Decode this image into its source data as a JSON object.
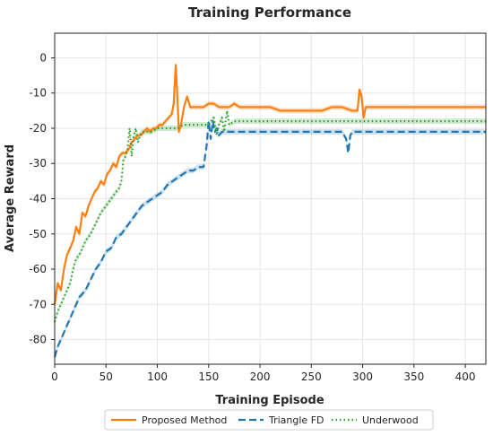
{
  "chart_data": {
    "type": "line",
    "title": "Training Performance",
    "xlabel": "Training Episode",
    "ylabel": "Average Reward",
    "xlim": [
      0,
      420
    ],
    "ylim": [
      -87,
      7
    ],
    "xticks": [
      0,
      50,
      100,
      150,
      200,
      250,
      300,
      350,
      400
    ],
    "yticks": [
      0,
      -10,
      -20,
      -30,
      -40,
      -50,
      -60,
      -70,
      -80
    ],
    "grid": true,
    "legend_position": "bottom-center",
    "series": [
      {
        "name": "Proposed Method",
        "color": "#ff7f0e",
        "style": "solid",
        "x": [
          0,
          3,
          6,
          9,
          12,
          15,
          18,
          21,
          24,
          27,
          30,
          33,
          36,
          39,
          42,
          45,
          48,
          51,
          54,
          57,
          60,
          63,
          66,
          69,
          72,
          75,
          78,
          81,
          84,
          87,
          90,
          93,
          96,
          99,
          102,
          105,
          108,
          111,
          114,
          116,
          118,
          119,
          121,
          123,
          126,
          129,
          132,
          135,
          140,
          145,
          150,
          155,
          160,
          165,
          170,
          175,
          180,
          185,
          190,
          195,
          200,
          210,
          220,
          230,
          240,
          250,
          260,
          270,
          280,
          290,
          295,
          297,
          299,
          301,
          303,
          306,
          310,
          320,
          330,
          340,
          350,
          360,
          370,
          380,
          390,
          400,
          410,
          420
        ],
        "y": [
          -70,
          -64,
          -66,
          -60,
          -56,
          -54,
          -52,
          -48,
          -50,
          -44,
          -45,
          -42,
          -40,
          -38,
          -37,
          -35,
          -36,
          -33,
          -32,
          -30,
          -31,
          -28,
          -27,
          -27,
          -26,
          -24,
          -23,
          -22,
          -22,
          -21,
          -20,
          -21,
          -20,
          -20,
          -19,
          -19,
          -18,
          -17,
          -16,
          -13,
          -2,
          -8,
          -21,
          -19,
          -14,
          -11,
          -14,
          -14,
          -14,
          -14,
          -13,
          -13,
          -14,
          -14,
          -14,
          -13,
          -14,
          -14,
          -14,
          -14,
          -14,
          -14,
          -15,
          -15,
          -15,
          -15,
          -15,
          -14,
          -14,
          -15,
          -15,
          -9,
          -11,
          -17,
          -14,
          -14,
          -14,
          -14,
          -14,
          -14,
          -14,
          -14,
          -14,
          -14,
          -14,
          -14,
          -14,
          -14
        ]
      },
      {
        "name": "Triangle FD",
        "color": "#1f77b4",
        "style": "dashed",
        "x": [
          0,
          3,
          6,
          9,
          12,
          15,
          18,
          21,
          24,
          27,
          30,
          35,
          40,
          45,
          50,
          55,
          60,
          65,
          70,
          75,
          80,
          85,
          90,
          95,
          100,
          105,
          110,
          115,
          120,
          125,
          130,
          135,
          140,
          145,
          148,
          150,
          152,
          154,
          156,
          158,
          160,
          163,
          166,
          170,
          175,
          180,
          190,
          200,
          210,
          220,
          230,
          240,
          250,
          260,
          270,
          280,
          284,
          286,
          288,
          290,
          292,
          295,
          300,
          310,
          320,
          330,
          340,
          350,
          360,
          370,
          380,
          390,
          400,
          410,
          420
        ],
        "y": [
          -85,
          -82,
          -80,
          -78,
          -76,
          -74,
          -72,
          -70,
          -68,
          -67,
          -66,
          -63,
          -60,
          -58,
          -55,
          -54,
          -51,
          -50,
          -48,
          -46,
          -44,
          -42,
          -41,
          -40,
          -39,
          -38,
          -36,
          -35,
          -34,
          -33,
          -32,
          -32,
          -31,
          -31,
          -25,
          -18,
          -23,
          -18,
          -21,
          -20,
          -22,
          -21,
          -21,
          -21,
          -21,
          -21,
          -21,
          -21,
          -21,
          -21,
          -21,
          -21,
          -21,
          -21,
          -21,
          -21,
          -23,
          -27,
          -22,
          -21,
          -21,
          -21,
          -21,
          -21,
          -21,
          -21,
          -21,
          -21,
          -21,
          -21,
          -21,
          -21,
          -21,
          -21,
          -21
        ]
      },
      {
        "name": "Underwood",
        "color": "#2ca02c",
        "style": "dotted",
        "x": [
          0,
          3,
          6,
          9,
          12,
          15,
          18,
          21,
          24,
          27,
          30,
          35,
          40,
          45,
          50,
          55,
          60,
          63,
          65,
          67,
          69,
          71,
          73,
          75,
          77,
          79,
          81,
          83,
          85,
          90,
          95,
          100,
          105,
          110,
          115,
          120,
          125,
          130,
          140,
          150,
          155,
          158,
          160,
          163,
          165,
          168,
          170,
          175,
          180,
          190,
          200,
          210,
          220,
          230,
          240,
          250,
          260,
          270,
          280,
          290,
          300,
          310,
          320,
          330,
          340,
          350,
          360,
          370,
          380,
          390,
          400,
          410,
          420
        ],
        "y": [
          -75,
          -72,
          -70,
          -68,
          -66,
          -64,
          -60,
          -57,
          -56,
          -54,
          -52,
          -50,
          -47,
          -44,
          -42,
          -40,
          -38,
          -37,
          -35,
          -29,
          -28,
          -26,
          -20,
          -28,
          -22,
          -20,
          -24,
          -22,
          -21,
          -21,
          -21,
          -20,
          -20,
          -20,
          -20,
          -20,
          -19,
          -19,
          -19,
          -19,
          -17,
          -22,
          -19,
          -17,
          -21,
          -15,
          -19,
          -18,
          -18,
          -18,
          -18,
          -18,
          -18,
          -18,
          -18,
          -18,
          -18,
          -18,
          -18,
          -18,
          -18,
          -18,
          -18,
          -18,
          -18,
          -18,
          -18,
          -18,
          -18,
          -18,
          -18,
          -18,
          -18
        ]
      }
    ]
  }
}
